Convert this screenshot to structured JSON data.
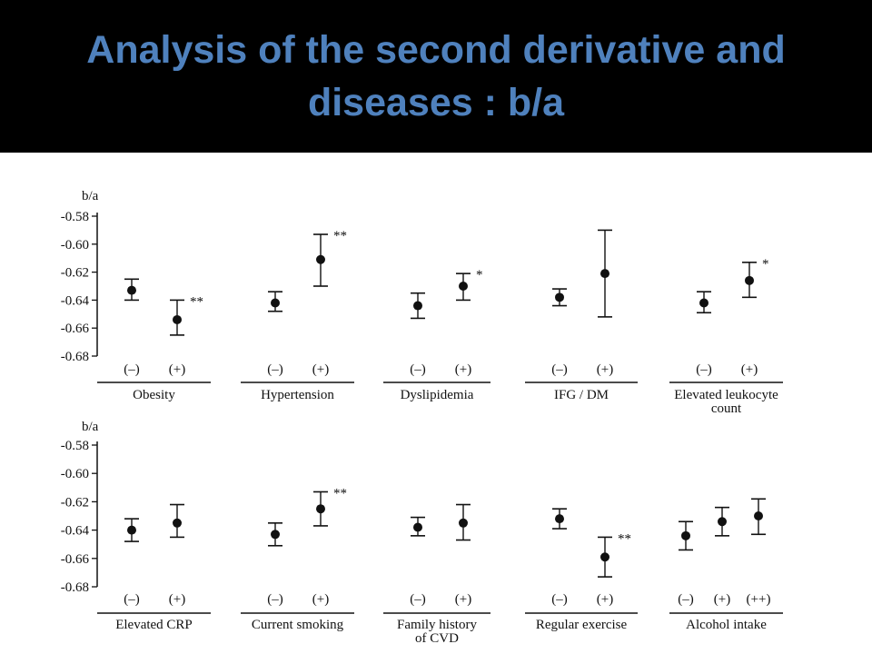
{
  "slide": {
    "title": "Analysis of the second derivative and\ndiseases : b/a",
    "title_color": "#4f81bd",
    "background": "#000000",
    "figure_background": "#ffffff"
  },
  "chart_data": [
    {
      "type": "scatter",
      "ylabel": "b/a",
      "ylim": [
        -0.68,
        -0.58
      ],
      "yticks": [
        "-0.58",
        "-0.60",
        "-0.62",
        "-0.64",
        "-0.66",
        "-0.68"
      ],
      "error_bars": true,
      "groups": [
        {
          "name": "Obesity",
          "points": [
            {
              "label": "(–)",
              "mean": -0.633,
              "low": -0.64,
              "high": -0.625,
              "sig": ""
            },
            {
              "label": "(+)",
              "mean": -0.654,
              "low": -0.665,
              "high": -0.64,
              "sig": "**"
            }
          ]
        },
        {
          "name": "Hypertension",
          "points": [
            {
              "label": "(–)",
              "mean": -0.642,
              "low": -0.648,
              "high": -0.634,
              "sig": ""
            },
            {
              "label": "(+)",
              "mean": -0.611,
              "low": -0.63,
              "high": -0.593,
              "sig": "**"
            }
          ]
        },
        {
          "name": "Dyslipidemia",
          "points": [
            {
              "label": "(–)",
              "mean": -0.644,
              "low": -0.653,
              "high": -0.635,
              "sig": ""
            },
            {
              "label": "(+)",
              "mean": -0.63,
              "low": -0.64,
              "high": -0.621,
              "sig": "*"
            }
          ]
        },
        {
          "name": "IFG / DM",
          "points": [
            {
              "label": "(–)",
              "mean": -0.638,
              "low": -0.644,
              "high": -0.632,
              "sig": ""
            },
            {
              "label": "(+)",
              "mean": -0.621,
              "low": -0.652,
              "high": -0.59,
              "sig": ""
            }
          ]
        },
        {
          "name": "Elevated leukocyte\ncount",
          "points": [
            {
              "label": "(–)",
              "mean": -0.642,
              "low": -0.649,
              "high": -0.634,
              "sig": ""
            },
            {
              "label": "(+)",
              "mean": -0.626,
              "low": -0.638,
              "high": -0.613,
              "sig": "*"
            }
          ]
        }
      ]
    },
    {
      "type": "scatter",
      "ylabel": "b/a",
      "ylim": [
        -0.68,
        -0.58
      ],
      "yticks": [
        "-0.58",
        "-0.60",
        "-0.62",
        "-0.64",
        "-0.66",
        "-0.68"
      ],
      "error_bars": true,
      "groups": [
        {
          "name": "Elevated CRP",
          "points": [
            {
              "label": "(–)",
              "mean": -0.64,
              "low": -0.648,
              "high": -0.632,
              "sig": ""
            },
            {
              "label": "(+)",
              "mean": -0.635,
              "low": -0.645,
              "high": -0.622,
              "sig": ""
            }
          ]
        },
        {
          "name": "Current smoking",
          "points": [
            {
              "label": "(–)",
              "mean": -0.643,
              "low": -0.651,
              "high": -0.635,
              "sig": ""
            },
            {
              "label": "(+)",
              "mean": -0.625,
              "low": -0.637,
              "high": -0.613,
              "sig": "**"
            }
          ]
        },
        {
          "name": "Family history\nof CVD",
          "points": [
            {
              "label": "(–)",
              "mean": -0.638,
              "low": -0.644,
              "high": -0.631,
              "sig": ""
            },
            {
              "label": "(+)",
              "mean": -0.635,
              "low": -0.647,
              "high": -0.622,
              "sig": ""
            }
          ]
        },
        {
          "name": "Regular exercise",
          "points": [
            {
              "label": "(–)",
              "mean": -0.632,
              "low": -0.639,
              "high": -0.625,
              "sig": ""
            },
            {
              "label": "(+)",
              "mean": -0.659,
              "low": -0.673,
              "high": -0.645,
              "sig": "**"
            }
          ]
        },
        {
          "name": "Alcohol intake",
          "points": [
            {
              "label": "(–)",
              "mean": -0.644,
              "low": -0.654,
              "high": -0.634,
              "sig": ""
            },
            {
              "label": "(+)",
              "mean": -0.634,
              "low": -0.644,
              "high": -0.624,
              "sig": ""
            },
            {
              "label": "(++)",
              "mean": -0.63,
              "low": -0.643,
              "high": -0.618,
              "sig": ""
            }
          ]
        }
      ]
    }
  ]
}
